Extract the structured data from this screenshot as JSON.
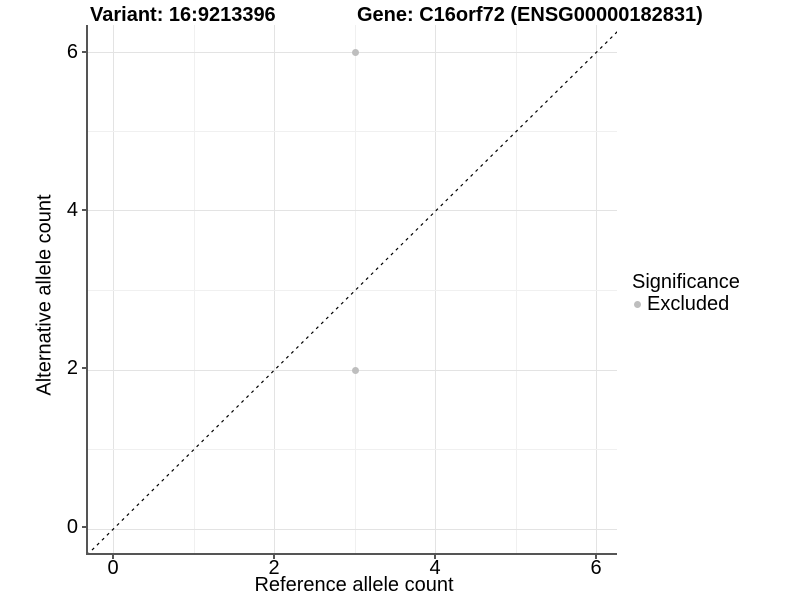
{
  "titles": {
    "left": "Variant: 16:9213396",
    "right": "Gene: C16orf72 (ENSG00000182831)"
  },
  "axes": {
    "x": {
      "label": "Reference allele count",
      "ticks": [
        "0",
        "2",
        "4",
        "6"
      ]
    },
    "y": {
      "label": "Alternative allele count",
      "ticks": [
        "6",
        "4",
        "2",
        "0"
      ]
    }
  },
  "legend": {
    "title": "Significance",
    "items": [
      {
        "label": "Excluded",
        "color": "#bebebe"
      }
    ]
  },
  "colors": {
    "point": "#bebebe",
    "axis_line": "#555555",
    "grid_major": "#e3e3e3",
    "grid_minor": "#f0f0f0",
    "identity_line": "#000000",
    "background": "#ffffff"
  },
  "chart_data": {
    "type": "scatter",
    "title_left": "Variant: 16:9213396",
    "title_right": "Gene: C16orf72 (ENSG00000182831)",
    "xlabel": "Reference allele count",
    "ylabel": "Alternative allele count",
    "xlim": [
      -0.3,
      6.3
    ],
    "ylim": [
      -0.3,
      6.3
    ],
    "x_ticks": [
      0,
      2,
      4,
      6
    ],
    "y_ticks": [
      0,
      2,
      4,
      6
    ],
    "grid": true,
    "legend_position": "right",
    "series": [
      {
        "name": "Excluded",
        "color": "#bebebe",
        "points": [
          {
            "x": 3,
            "y": 6
          },
          {
            "x": 3,
            "y": 2
          }
        ]
      }
    ],
    "reference_line": {
      "type": "identity y=x",
      "style": "dashed",
      "color": "#000000"
    }
  }
}
